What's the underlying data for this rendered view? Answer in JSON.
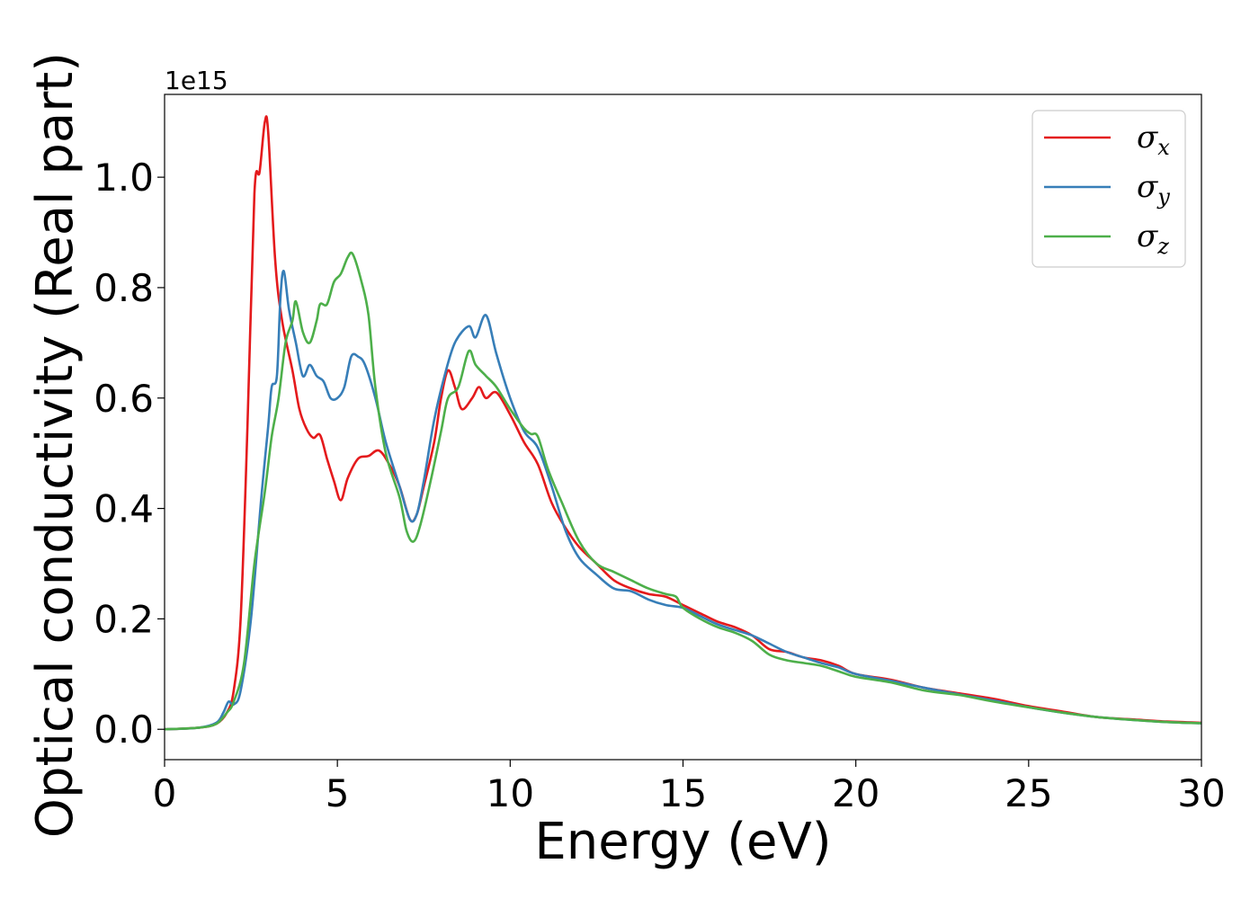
{
  "chart_data": {
    "type": "line",
    "xlabel": "Energy (eV)",
    "ylabel": "Optical conductivity (Real part)",
    "y_offset_label": "1e15",
    "xlim": [
      0,
      30
    ],
    "ylim": [
      -0.055,
      1.15
    ],
    "x_ticks": [
      0,
      5,
      10,
      15,
      20,
      25,
      30
    ],
    "x_tick_labels": [
      "0",
      "5",
      "10",
      "15",
      "20",
      "25",
      "30"
    ],
    "y_ticks": [
      0.0,
      0.2,
      0.4,
      0.6,
      0.8,
      1.0
    ],
    "y_tick_labels": [
      "0.0",
      "0.2",
      "0.4",
      "0.6",
      "0.8",
      "1.0"
    ],
    "grid": false,
    "legend_position": "top-right",
    "series": [
      {
        "name": "σ",
        "subscript": "x",
        "color": "#e41a1c",
        "points": [
          [
            0,
            0
          ],
          [
            1,
            0.003
          ],
          [
            1.5,
            0.01
          ],
          [
            1.8,
            0.03
          ],
          [
            2.0,
            0.07
          ],
          [
            2.2,
            0.2
          ],
          [
            2.4,
            0.55
          ],
          [
            2.6,
            0.97
          ],
          [
            2.75,
            1.01
          ],
          [
            2.9,
            1.1
          ],
          [
            3.0,
            1.08
          ],
          [
            3.2,
            0.85
          ],
          [
            3.4,
            0.74
          ],
          [
            3.7,
            0.65
          ],
          [
            3.9,
            0.58
          ],
          [
            4.1,
            0.545
          ],
          [
            4.3,
            0.528
          ],
          [
            4.5,
            0.533
          ],
          [
            4.7,
            0.49
          ],
          [
            4.9,
            0.45
          ],
          [
            5.1,
            0.415
          ],
          [
            5.3,
            0.455
          ],
          [
            5.6,
            0.49
          ],
          [
            5.9,
            0.495
          ],
          [
            6.2,
            0.505
          ],
          [
            6.5,
            0.48
          ],
          [
            6.8,
            0.44
          ],
          [
            7.1,
            0.38
          ],
          [
            7.3,
            0.39
          ],
          [
            7.5,
            0.44
          ],
          [
            7.8,
            0.52
          ],
          [
            8.0,
            0.6
          ],
          [
            8.2,
            0.65
          ],
          [
            8.4,
            0.62
          ],
          [
            8.6,
            0.58
          ],
          [
            8.9,
            0.6
          ],
          [
            9.1,
            0.62
          ],
          [
            9.3,
            0.6
          ],
          [
            9.6,
            0.61
          ],
          [
            10.0,
            0.57
          ],
          [
            10.4,
            0.52
          ],
          [
            10.8,
            0.48
          ],
          [
            11.2,
            0.41
          ],
          [
            11.6,
            0.365
          ],
          [
            12.0,
            0.33
          ],
          [
            12.5,
            0.3
          ],
          [
            13.0,
            0.27
          ],
          [
            13.5,
            0.255
          ],
          [
            14.0,
            0.245
          ],
          [
            14.5,
            0.24
          ],
          [
            15.0,
            0.225
          ],
          [
            15.5,
            0.21
          ],
          [
            16.0,
            0.195
          ],
          [
            16.5,
            0.185
          ],
          [
            17.0,
            0.17
          ],
          [
            17.5,
            0.145
          ],
          [
            18.0,
            0.14
          ],
          [
            18.5,
            0.13
          ],
          [
            19.0,
            0.125
          ],
          [
            19.5,
            0.115
          ],
          [
            20.0,
            0.1
          ],
          [
            21.0,
            0.09
          ],
          [
            22.0,
            0.075
          ],
          [
            23.0,
            0.065
          ],
          [
            24.0,
            0.055
          ],
          [
            25.0,
            0.042
          ],
          [
            26.0,
            0.032
          ],
          [
            27.0,
            0.022
          ],
          [
            28.0,
            0.018
          ],
          [
            29.0,
            0.014
          ],
          [
            30.0,
            0.012
          ]
        ]
      },
      {
        "name": "σ",
        "subscript": "y",
        "color": "#377eb8",
        "points": [
          [
            0,
            0
          ],
          [
            1,
            0.003
          ],
          [
            1.5,
            0.012
          ],
          [
            1.7,
            0.03
          ],
          [
            1.85,
            0.05
          ],
          [
            2.0,
            0.045
          ],
          [
            2.2,
            0.07
          ],
          [
            2.5,
            0.2
          ],
          [
            2.8,
            0.42
          ],
          [
            3.0,
            0.55
          ],
          [
            3.1,
            0.62
          ],
          [
            3.25,
            0.64
          ],
          [
            3.35,
            0.78
          ],
          [
            3.45,
            0.83
          ],
          [
            3.6,
            0.76
          ],
          [
            3.8,
            0.7
          ],
          [
            4.0,
            0.64
          ],
          [
            4.2,
            0.66
          ],
          [
            4.4,
            0.64
          ],
          [
            4.6,
            0.63
          ],
          [
            4.8,
            0.6
          ],
          [
            5.0,
            0.6
          ],
          [
            5.2,
            0.62
          ],
          [
            5.4,
            0.675
          ],
          [
            5.6,
            0.675
          ],
          [
            5.8,
            0.66
          ],
          [
            6.1,
            0.6
          ],
          [
            6.4,
            0.52
          ],
          [
            6.8,
            0.44
          ],
          [
            7.1,
            0.38
          ],
          [
            7.3,
            0.39
          ],
          [
            7.5,
            0.45
          ],
          [
            7.8,
            0.56
          ],
          [
            8.1,
            0.64
          ],
          [
            8.4,
            0.7
          ],
          [
            8.8,
            0.73
          ],
          [
            9.0,
            0.71
          ],
          [
            9.3,
            0.75
          ],
          [
            9.6,
            0.68
          ],
          [
            10.0,
            0.6
          ],
          [
            10.4,
            0.54
          ],
          [
            10.8,
            0.51
          ],
          [
            11.2,
            0.44
          ],
          [
            11.6,
            0.36
          ],
          [
            12.0,
            0.31
          ],
          [
            12.5,
            0.28
          ],
          [
            13.0,
            0.255
          ],
          [
            13.5,
            0.25
          ],
          [
            14.0,
            0.235
          ],
          [
            14.5,
            0.225
          ],
          [
            15.0,
            0.22
          ],
          [
            15.5,
            0.205
          ],
          [
            16.0,
            0.19
          ],
          [
            16.5,
            0.18
          ],
          [
            17.0,
            0.17
          ],
          [
            17.5,
            0.155
          ],
          [
            18.0,
            0.14
          ],
          [
            18.5,
            0.13
          ],
          [
            19.0,
            0.12
          ],
          [
            19.5,
            0.112
          ],
          [
            20.0,
            0.1
          ],
          [
            21.0,
            0.088
          ],
          [
            22.0,
            0.075
          ],
          [
            23.0,
            0.063
          ],
          [
            24.0,
            0.052
          ],
          [
            25.0,
            0.04
          ],
          [
            26.0,
            0.03
          ],
          [
            27.0,
            0.022
          ],
          [
            28.0,
            0.017
          ],
          [
            29.0,
            0.013
          ],
          [
            30.0,
            0.011
          ]
        ]
      },
      {
        "name": "σ",
        "subscript": "z",
        "color": "#4daf4a",
        "points": [
          [
            0,
            0
          ],
          [
            1,
            0.003
          ],
          [
            1.5,
            0.01
          ],
          [
            1.8,
            0.03
          ],
          [
            2.0,
            0.05
          ],
          [
            2.3,
            0.12
          ],
          [
            2.6,
            0.3
          ],
          [
            2.9,
            0.43
          ],
          [
            3.1,
            0.53
          ],
          [
            3.3,
            0.6
          ],
          [
            3.5,
            0.7
          ],
          [
            3.7,
            0.74
          ],
          [
            3.8,
            0.775
          ],
          [
            4.0,
            0.72
          ],
          [
            4.2,
            0.7
          ],
          [
            4.4,
            0.74
          ],
          [
            4.5,
            0.77
          ],
          [
            4.7,
            0.77
          ],
          [
            4.9,
            0.81
          ],
          [
            5.1,
            0.825
          ],
          [
            5.3,
            0.855
          ],
          [
            5.45,
            0.86
          ],
          [
            5.7,
            0.81
          ],
          [
            5.9,
            0.75
          ],
          [
            6.1,
            0.62
          ],
          [
            6.4,
            0.5
          ],
          [
            6.8,
            0.42
          ],
          [
            7.0,
            0.36
          ],
          [
            7.2,
            0.34
          ],
          [
            7.4,
            0.37
          ],
          [
            7.7,
            0.45
          ],
          [
            8.0,
            0.54
          ],
          [
            8.2,
            0.6
          ],
          [
            8.5,
            0.62
          ],
          [
            8.8,
            0.685
          ],
          [
            9.0,
            0.66
          ],
          [
            9.3,
            0.64
          ],
          [
            9.6,
            0.62
          ],
          [
            10.0,
            0.58
          ],
          [
            10.4,
            0.545
          ],
          [
            10.6,
            0.535
          ],
          [
            10.8,
            0.53
          ],
          [
            11.1,
            0.47
          ],
          [
            11.5,
            0.41
          ],
          [
            12.0,
            0.34
          ],
          [
            12.5,
            0.3
          ],
          [
            13.0,
            0.285
          ],
          [
            13.5,
            0.27
          ],
          [
            14.0,
            0.255
          ],
          [
            14.5,
            0.245
          ],
          [
            14.8,
            0.24
          ],
          [
            15.0,
            0.22
          ],
          [
            15.5,
            0.2
          ],
          [
            16.0,
            0.185
          ],
          [
            16.5,
            0.175
          ],
          [
            17.0,
            0.16
          ],
          [
            17.5,
            0.135
          ],
          [
            18.0,
            0.125
          ],
          [
            18.5,
            0.12
          ],
          [
            19.0,
            0.115
          ],
          [
            19.5,
            0.105
          ],
          [
            20.0,
            0.095
          ],
          [
            21.0,
            0.085
          ],
          [
            22.0,
            0.07
          ],
          [
            23.0,
            0.062
          ],
          [
            24.0,
            0.05
          ],
          [
            25.0,
            0.04
          ],
          [
            26.0,
            0.03
          ],
          [
            27.0,
            0.022
          ],
          [
            28.0,
            0.017
          ],
          [
            29.0,
            0.013
          ],
          [
            30.0,
            0.011
          ]
        ]
      }
    ]
  }
}
